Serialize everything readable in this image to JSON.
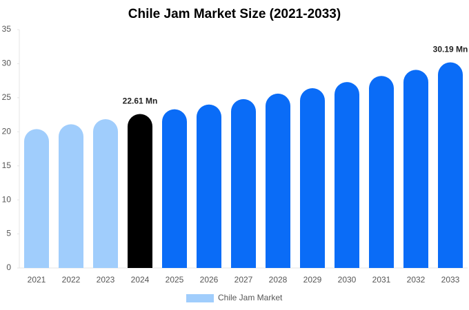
{
  "chart_data": {
    "type": "bar",
    "title": "Chile Jam Market Size (2021-2033)",
    "categories": [
      "2021",
      "2022",
      "2023",
      "2024",
      "2025",
      "2026",
      "2027",
      "2028",
      "2029",
      "2030",
      "2031",
      "2032",
      "2033"
    ],
    "series": [
      {
        "name": "Chile Jam Market",
        "color": "#a0cdfc",
        "colors": [
          "#a0cdfc",
          "#a0cdfc",
          "#a0cdfc",
          "#000000",
          "#0a6cf7",
          "#0a6cf7",
          "#0a6cf7",
          "#0a6cf7",
          "#0a6cf7",
          "#0a6cf7",
          "#0a6cf7",
          "#0a6cf7",
          "#0a6cf7"
        ],
        "values": [
          20.4,
          21.1,
          21.85,
          22.61,
          23.3,
          24.0,
          24.8,
          25.6,
          26.4,
          27.3,
          28.2,
          29.1,
          30.19
        ],
        "value_labels": [
          null,
          null,
          null,
          "22.61 Mn",
          null,
          null,
          null,
          null,
          null,
          null,
          null,
          null,
          "30.19 Mn"
        ]
      }
    ],
    "ylim": [
      0,
      35
    ],
    "yticks": [
      0,
      5,
      10,
      15,
      20,
      25,
      30,
      35
    ],
    "grid": false,
    "legend": "bottom"
  }
}
